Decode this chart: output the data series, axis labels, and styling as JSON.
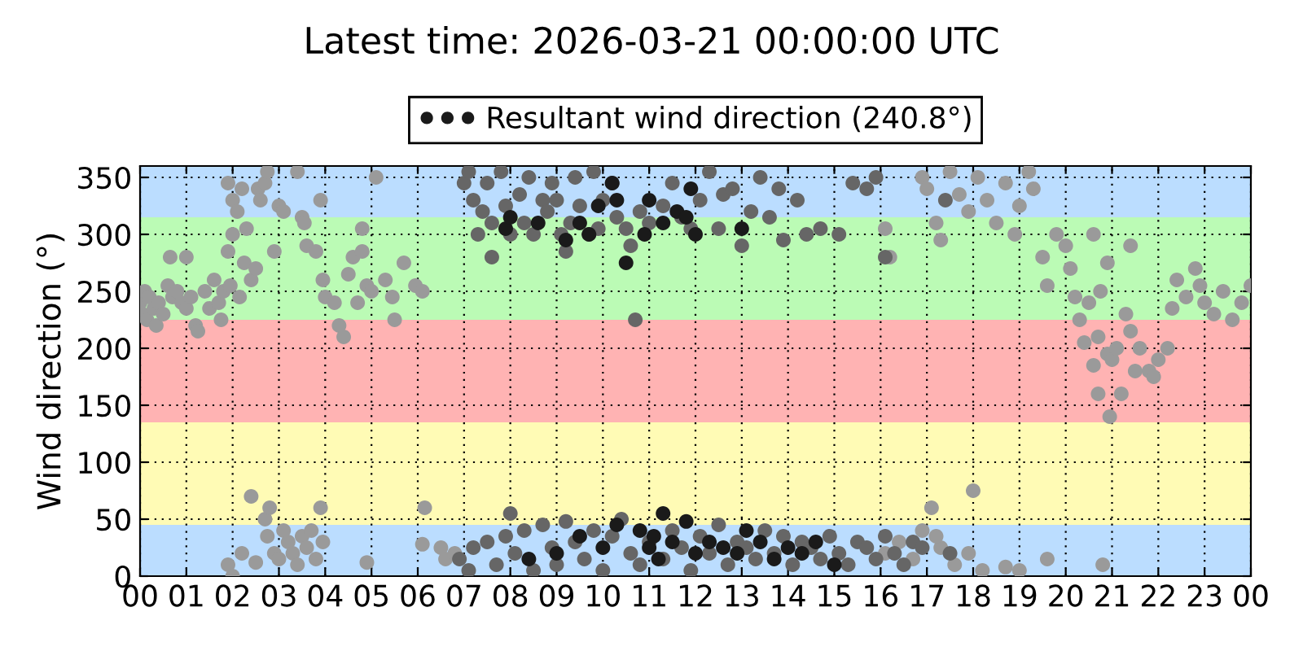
{
  "chart_data": {
    "type": "scatter",
    "title": "Latest time: 2026-03-21 00:00:00 UTC",
    "ylabel": "Wind direction (°)",
    "xlim": [
      0,
      24
    ],
    "ylim": [
      0,
      360
    ],
    "xticks": [
      {
        "value": 0,
        "label": "00"
      },
      {
        "value": 1,
        "label": "01"
      },
      {
        "value": 2,
        "label": "02"
      },
      {
        "value": 3,
        "label": "03"
      },
      {
        "value": 4,
        "label": "04"
      },
      {
        "value": 5,
        "label": "05"
      },
      {
        "value": 6,
        "label": "06"
      },
      {
        "value": 7,
        "label": "07"
      },
      {
        "value": 8,
        "label": "08"
      },
      {
        "value": 9,
        "label": "09"
      },
      {
        "value": 10,
        "label": "10"
      },
      {
        "value": 11,
        "label": "11"
      },
      {
        "value": 12,
        "label": "12"
      },
      {
        "value": 13,
        "label": "13"
      },
      {
        "value": 14,
        "label": "14"
      },
      {
        "value": 15,
        "label": "15"
      },
      {
        "value": 16,
        "label": "16"
      },
      {
        "value": 17,
        "label": "17"
      },
      {
        "value": 18,
        "label": "18"
      },
      {
        "value": 19,
        "label": "19"
      },
      {
        "value": 20,
        "label": "20"
      },
      {
        "value": 21,
        "label": "21"
      },
      {
        "value": 22,
        "label": "22"
      },
      {
        "value": 23,
        "label": "23"
      },
      {
        "value": 24,
        "label": "00"
      }
    ],
    "yticks": [
      0,
      50,
      100,
      150,
      200,
      250,
      300,
      350
    ],
    "grid": true,
    "legend": "top",
    "marker": "circle",
    "bands": [
      {
        "axis": "y",
        "from": 0,
        "to": 45,
        "color": "#bbddff"
      },
      {
        "axis": "y",
        "from": 45,
        "to": 135,
        "color": "#fffbb5"
      },
      {
        "axis": "y",
        "from": 135,
        "to": 225,
        "color": "#ffb3b3"
      },
      {
        "axis": "y",
        "from": 225,
        "to": 315,
        "color": "#bbfbb5"
      },
      {
        "axis": "y",
        "from": 315,
        "to": 360,
        "color": "#bbddff"
      }
    ],
    "series": [
      {
        "color": "#9a9a9a",
        "x": [
          0.0,
          0.05,
          0.1,
          0.15,
          0.2,
          0.3,
          0.35,
          0.4,
          0.5,
          0.6,
          0.65,
          0.7,
          0.8,
          0.9,
          1.0,
          1.0,
          1.1,
          1.2,
          1.25,
          1.4,
          1.5,
          1.6,
          1.7,
          1.75,
          1.8,
          1.9,
          1.9,
          1.95,
          2.0,
          2.0,
          2.1,
          2.15,
          2.2,
          2.25,
          2.3,
          2.4,
          2.5,
          2.55,
          2.6,
          2.7,
          2.75,
          2.9,
          3.0,
          3.1,
          3.4,
          3.5,
          3.55,
          3.6,
          3.8,
          3.9,
          3.95,
          4.0,
          4.2,
          4.3,
          4.4,
          4.5,
          4.6,
          4.7,
          4.8,
          4.8,
          4.9,
          5.0,
          5.1,
          5.3,
          5.45,
          5.5,
          5.7,
          5.95,
          6.1,
          1.9,
          2.0,
          2.2,
          2.4,
          2.5,
          2.7,
          2.75,
          2.8,
          2.9,
          3.0,
          3.1,
          3.2,
          3.3,
          3.4,
          3.5,
          3.6,
          3.7,
          3.8,
          3.9,
          3.95,
          4.9,
          6.15,
          6.1,
          6.5,
          6.6,
          6.8,
          16.1,
          16.2,
          16.9,
          17.0,
          17.2,
          17.3,
          17.5,
          17.7,
          17.9,
          18.1,
          18.3,
          18.5,
          18.7,
          18.9,
          19.0,
          19.2,
          19.3,
          19.5,
          19.6,
          19.8,
          20.0,
          20.1,
          20.2,
          20.3,
          20.4,
          20.5,
          20.6,
          20.7,
          20.7,
          20.75,
          20.9,
          20.9,
          20.95,
          21.0,
          21.1,
          21.2,
          21.3,
          21.4,
          21.5,
          21.6,
          21.8,
          21.9,
          22.0,
          22.2,
          22.3,
          22.4,
          22.6,
          22.8,
          22.9,
          23.0,
          23.2,
          23.4,
          23.6,
          23.8,
          24.0,
          21.4,
          20.6,
          16.1,
          16.4,
          16.7,
          16.9,
          17.1,
          17.3,
          17.6,
          17.9,
          18.0,
          18.2,
          18.7,
          19.0,
          19.6,
          20.8,
          17.2
        ],
        "values": [
          240,
          230,
          250,
          225,
          245,
          235,
          220,
          240,
          230,
          255,
          280,
          245,
          250,
          240,
          280,
          235,
          245,
          220,
          215,
          250,
          235,
          260,
          240,
          225,
          250,
          285,
          345,
          255,
          300,
          330,
          320,
          245,
          340,
          275,
          305,
          260,
          270,
          340,
          330,
          345,
          355,
          285,
          325,
          320,
          355,
          315,
          310,
          290,
          285,
          330,
          260,
          245,
          240,
          220,
          210,
          265,
          280,
          240,
          305,
          285,
          255,
          250,
          350,
          260,
          245,
          225,
          275,
          255,
          250,
          10,
          0,
          20,
          70,
          12,
          50,
          35,
          60,
          20,
          15,
          40,
          30,
          20,
          10,
          35,
          25,
          40,
          15,
          60,
          30,
          12,
          60,
          28,
          25,
          15,
          20,
          305,
          280,
          350,
          340,
          310,
          295,
          355,
          335,
          320,
          350,
          330,
          310,
          345,
          300,
          325,
          355,
          340,
          280,
          255,
          300,
          290,
          270,
          245,
          225,
          205,
          240,
          185,
          210,
          160,
          250,
          195,
          275,
          140,
          190,
          200,
          160,
          230,
          215,
          180,
          200,
          180,
          175,
          190,
          200,
          235,
          260,
          245,
          270,
          255,
          240,
          230,
          250,
          225,
          240,
          255,
          290,
          300,
          20,
          30,
          15,
          40,
          60,
          25,
          10,
          20,
          75,
          5,
          8,
          5,
          15,
          10,
          35
        ]
      },
      {
        "color": "#666666",
        "x": [
          7.0,
          7.1,
          7.2,
          7.3,
          7.4,
          7.5,
          7.6,
          7.6,
          7.8,
          7.9,
          8.0,
          8.2,
          8.3,
          8.4,
          8.5,
          8.7,
          8.8,
          8.9,
          9.0,
          9.1,
          9.2,
          9.3,
          9.4,
          9.5,
          9.7,
          9.8,
          9.9,
          10.0,
          10.2,
          10.3,
          10.5,
          10.6,
          10.7,
          10.8,
          11.0,
          11.3,
          11.5,
          11.7,
          11.9,
          12.1,
          12.3,
          12.5,
          12.6,
          12.8,
          13.0,
          13.2,
          13.4,
          13.6,
          13.8,
          13.9,
          14.2,
          14.4,
          14.7,
          15.1,
          15.4,
          15.7,
          15.9,
          16.1,
          6.9,
          7.1,
          7.2,
          7.5,
          7.7,
          7.9,
          8.0,
          8.1,
          8.3,
          8.5,
          8.7,
          8.9,
          9.0,
          9.2,
          9.4,
          9.6,
          9.8,
          10.0,
          10.2,
          10.4,
          10.6,
          10.8,
          11.0,
          11.3,
          11.5,
          11.7,
          11.9,
          12.1,
          12.3,
          12.5,
          12.7,
          12.9,
          13.1,
          13.3,
          13.5,
          13.7,
          13.9,
          14.1,
          14.3,
          14.5,
          14.7,
          14.9,
          15.1,
          15.3,
          15.5,
          15.7,
          15.9,
          16.1,
          16.3,
          16.5,
          16.7,
          16.9,
          17.4,
          17.5
        ],
        "values": [
          345,
          355,
          330,
          300,
          320,
          345,
          310,
          280,
          355,
          325,
          300,
          335,
          310,
          350,
          300,
          330,
          320,
          345,
          330,
          300,
          285,
          310,
          350,
          325,
          300,
          355,
          305,
          330,
          345,
          315,
          305,
          290,
          225,
          320,
          310,
          325,
          345,
          315,
          305,
          330,
          355,
          305,
          335,
          340,
          290,
          320,
          350,
          315,
          340,
          295,
          330,
          300,
          305,
          300,
          345,
          340,
          350,
          280,
          15,
          5,
          25,
          30,
          10,
          35,
          55,
          20,
          40,
          5,
          45,
          25,
          10,
          48,
          30,
          15,
          40,
          5,
          35,
          50,
          20,
          10,
          30,
          15,
          40,
          25,
          5,
          35,
          20,
          45,
          10,
          30,
          25,
          15,
          40,
          20,
          35,
          10,
          30,
          25,
          15,
          35,
          20,
          10,
          30,
          25,
          15,
          35,
          20,
          10,
          30,
          25,
          330,
          20
        ]
      },
      {
        "name": "Resultant wind direction (240.8°)",
        "color": "#1a1a1a",
        "x": [
          7.9,
          8.0,
          8.6,
          9.2,
          9.5,
          9.7,
          9.9,
          10.2,
          10.3,
          10.5,
          10.9,
          11.0,
          11.3,
          11.6,
          11.8,
          11.9,
          12.0,
          13.0,
          8.4,
          9.0,
          9.5,
          10.0,
          10.3,
          10.8,
          11.0,
          11.1,
          11.2,
          11.3,
          11.5,
          11.8,
          12.0,
          12.3,
          12.6,
          12.9,
          13.1,
          13.4,
          13.7,
          14.0,
          14.3,
          14.6,
          15.0
        ],
        "values": [
          305,
          315,
          310,
          295,
          310,
          300,
          325,
          345,
          330,
          275,
          300,
          330,
          310,
          320,
          315,
          340,
          300,
          305,
          15,
          20,
          35,
          25,
          45,
          40,
          25,
          35,
          15,
          55,
          30,
          48,
          20,
          30,
          25,
          20,
          40,
          30,
          15,
          25,
          20,
          30,
          10
        ]
      }
    ]
  }
}
